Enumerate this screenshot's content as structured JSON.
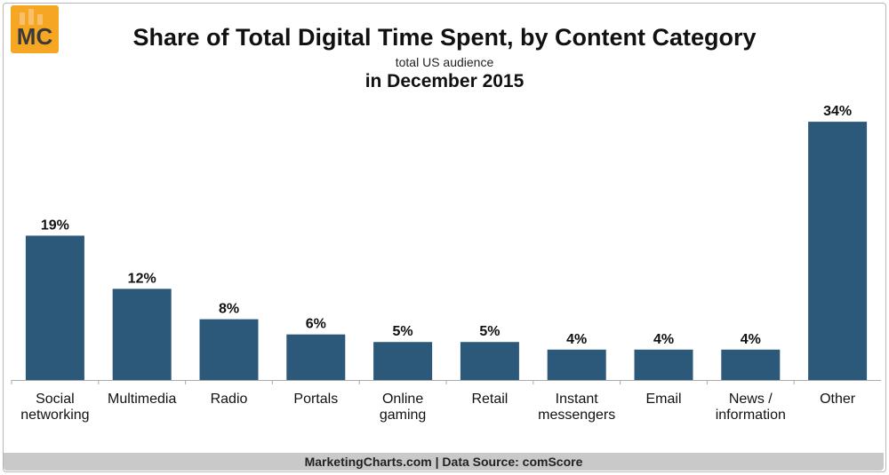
{
  "header": {
    "logo_text": "MC",
    "title": "Share of Total Digital Time Spent, by Content Category",
    "subtitle": "total US audience",
    "subtitle2": "in December 2015"
  },
  "footer": {
    "source": "MarketingCharts.com | Data Source: comScore"
  },
  "colors": {
    "bar": "#2c5879",
    "logo": "#f5a623",
    "footer_bg": "#c9c9c9"
  },
  "chart_data": {
    "type": "bar",
    "title": "Share of Total Digital Time Spent, by Content Category",
    "subtitle": "total US audience",
    "categories": [
      [
        "Social",
        "networking"
      ],
      [
        "Multimedia"
      ],
      [
        "Radio"
      ],
      [
        "Portals"
      ],
      [
        "Online",
        "gaming"
      ],
      [
        "Retail"
      ],
      [
        "Instant",
        "messengers"
      ],
      [
        "Email"
      ],
      [
        "News /",
        "information"
      ],
      [
        "Other"
      ]
    ],
    "values": [
      19,
      12,
      8,
      6,
      5,
      5,
      4,
      4,
      4,
      34
    ],
    "value_labels": [
      "19%",
      "12%",
      "8%",
      "6%",
      "5%",
      "5%",
      "4%",
      "4%",
      "4%",
      "34%"
    ],
    "ylim": [
      0,
      36
    ],
    "grid": false,
    "legend": "none"
  }
}
